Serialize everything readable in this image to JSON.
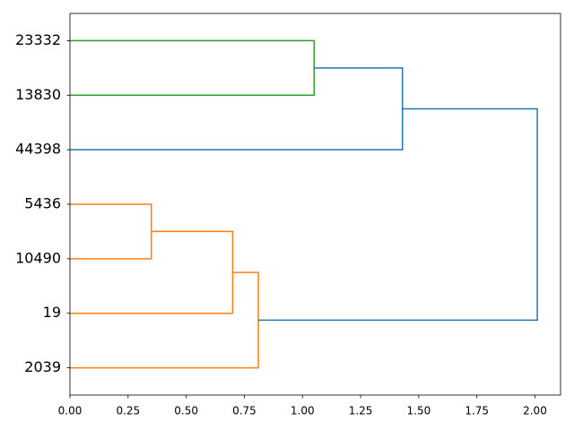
{
  "chart_data": {
    "type": "dendrogram",
    "orientation": "left",
    "leaves": [
      "23332",
      "13830",
      "44398",
      "5436",
      "10490",
      "19",
      "2039"
    ],
    "merges": [
      {
        "nodes": [
          3,
          4
        ],
        "height": 0.35,
        "color": "#ff7f0e"
      },
      {
        "nodes": [
          7,
          5
        ],
        "height": 0.7,
        "color": "#ff7f0e"
      },
      {
        "nodes": [
          8,
          6
        ],
        "height": 0.81,
        "color": "#ff7f0e"
      },
      {
        "nodes": [
          0,
          1
        ],
        "height": 1.05,
        "color": "#2ca02c"
      },
      {
        "nodes": [
          10,
          2
        ],
        "height": 1.43,
        "color": "#1f77b4"
      },
      {
        "nodes": [
          11,
          9
        ],
        "height": 2.01,
        "color": "#1f77b4"
      }
    ],
    "xlim": [
      0,
      2.11
    ],
    "xticks": [
      {
        "value": 0,
        "label": "0.00"
      },
      {
        "value": 0.25,
        "label": "0.25"
      },
      {
        "value": 0.5,
        "label": "0.50"
      },
      {
        "value": 0.75,
        "label": "0.75"
      },
      {
        "value": 1,
        "label": "1.00"
      },
      {
        "value": 1.25,
        "label": "1.25"
      },
      {
        "value": 1.5,
        "label": "1.50"
      },
      {
        "value": 1.75,
        "label": "1.75"
      },
      {
        "value": 2,
        "label": "2.00"
      }
    ]
  }
}
